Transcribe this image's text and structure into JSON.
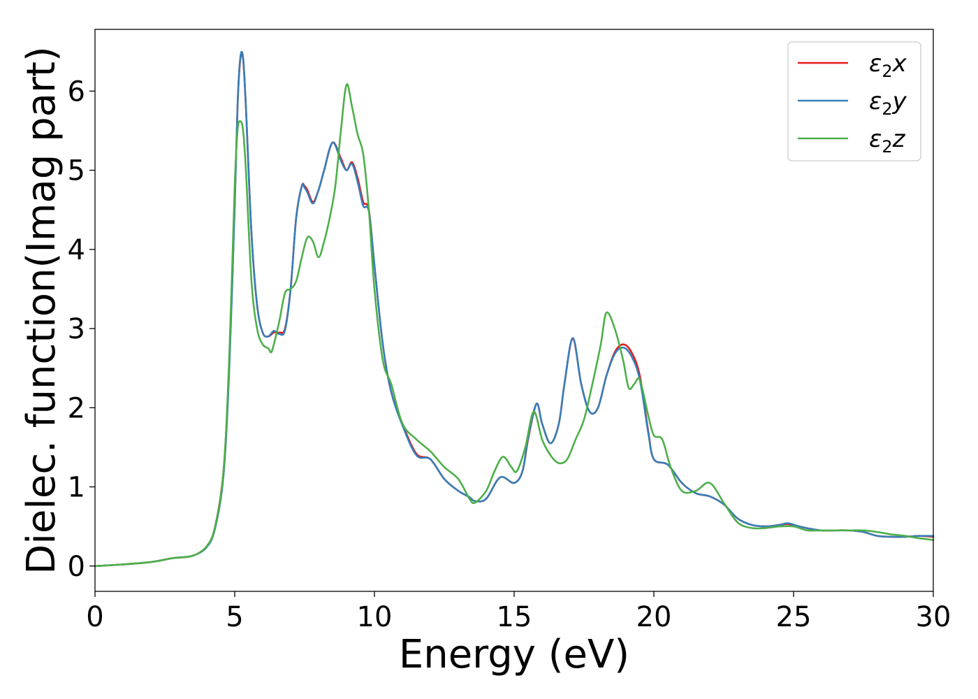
{
  "chart_data": {
    "type": "line",
    "xlabel": "Energy (eV)",
    "ylabel": "Dielec. function(Imag part)",
    "xlim": [
      0,
      30
    ],
    "ylim": [
      -0.32,
      6.78
    ],
    "xticks": [
      0,
      5,
      10,
      15,
      20,
      25,
      30
    ],
    "yticks": [
      0,
      1,
      2,
      3,
      4,
      5,
      6
    ],
    "grid": false,
    "legend_position": "top-right",
    "series": [
      {
        "name": "ε₂x",
        "legend_base": "ε",
        "legend_sub": "2",
        "legend_var": "x",
        "color": "#e41a1c",
        "x": [
          0,
          1,
          2,
          2.8,
          3.5,
          4,
          4.3,
          4.6,
          4.8,
          5.0,
          5.1,
          5.2,
          5.3,
          5.4,
          5.6,
          5.8,
          6.0,
          6.2,
          6.4,
          6.6,
          6.8,
          7.0,
          7.2,
          7.4,
          7.5,
          7.6,
          7.8,
          8.0,
          8.2,
          8.5,
          8.8,
          9.0,
          9.2,
          9.4,
          9.6,
          9.8,
          10.0,
          10.3,
          10.6,
          11.0,
          11.5,
          12.0,
          12.5,
          13.0,
          13.4,
          13.6,
          14.0,
          14.5,
          15.0,
          15.3,
          15.5,
          15.8,
          16.0,
          16.3,
          16.6,
          16.8,
          17.1,
          17.4,
          17.7,
          18.0,
          18.3,
          18.6,
          18.9,
          19.2,
          19.5,
          19.8,
          20.0,
          20.5,
          21.0,
          21.5,
          22.0,
          22.5,
          23.0,
          23.5,
          24.0,
          24.5,
          24.8,
          25.2,
          25.6,
          26.0,
          26.5,
          27.0,
          27.5,
          28.0,
          28.5,
          29.0,
          29.5,
          30.0
        ],
        "y": [
          0,
          0.02,
          0.05,
          0.1,
          0.13,
          0.25,
          0.5,
          1.2,
          2.5,
          4.6,
          5.8,
          6.4,
          6.4,
          5.8,
          4.2,
          3.3,
          2.95,
          2.9,
          2.95,
          2.95,
          3.0,
          3.5,
          4.4,
          4.8,
          4.8,
          4.75,
          4.6,
          4.75,
          5.0,
          5.35,
          5.15,
          5.0,
          5.1,
          4.9,
          4.6,
          4.5,
          3.8,
          2.8,
          2.2,
          1.8,
          1.42,
          1.35,
          1.1,
          0.95,
          0.87,
          0.82,
          0.85,
          1.12,
          1.05,
          1.2,
          1.6,
          2.05,
          1.8,
          1.55,
          1.8,
          2.3,
          2.87,
          2.3,
          1.95,
          2.0,
          2.4,
          2.7,
          2.8,
          2.7,
          2.4,
          1.7,
          1.35,
          1.28,
          1.05,
          0.92,
          0.88,
          0.78,
          0.6,
          0.52,
          0.5,
          0.52,
          0.53,
          0.5,
          0.47,
          0.45,
          0.45,
          0.45,
          0.43,
          0.38,
          0.37,
          0.37,
          0.38,
          0.37
        ]
      },
      {
        "name": "ε₂y",
        "legend_base": "ε",
        "legend_sub": "2",
        "legend_var": "y",
        "color": "#377eb8",
        "x": [
          0,
          1,
          2,
          2.8,
          3.5,
          4,
          4.3,
          4.6,
          4.8,
          5.0,
          5.1,
          5.2,
          5.3,
          5.4,
          5.6,
          5.8,
          6.0,
          6.2,
          6.4,
          6.6,
          6.8,
          7.0,
          7.2,
          7.4,
          7.5,
          7.6,
          7.8,
          8.0,
          8.2,
          8.5,
          8.8,
          9.0,
          9.2,
          9.4,
          9.6,
          9.8,
          10.0,
          10.3,
          10.6,
          11.0,
          11.5,
          12.0,
          12.5,
          13.0,
          13.4,
          13.6,
          14.0,
          14.5,
          15.0,
          15.3,
          15.5,
          15.8,
          16.0,
          16.3,
          16.6,
          16.8,
          17.1,
          17.4,
          17.7,
          18.0,
          18.3,
          18.6,
          18.9,
          19.2,
          19.5,
          19.8,
          20.0,
          20.5,
          21.0,
          21.5,
          22.0,
          22.5,
          23.0,
          23.5,
          24.0,
          24.5,
          24.8,
          25.2,
          25.6,
          26.0,
          26.5,
          27.0,
          27.5,
          28.0,
          28.5,
          29.0,
          29.5,
          30.0
        ],
        "y": [
          0,
          0.02,
          0.05,
          0.1,
          0.13,
          0.24,
          0.48,
          1.15,
          2.45,
          4.55,
          5.8,
          6.42,
          6.42,
          5.8,
          4.2,
          3.3,
          2.95,
          2.9,
          2.97,
          2.93,
          2.98,
          3.5,
          4.4,
          4.8,
          4.78,
          4.72,
          4.58,
          4.75,
          5.0,
          5.35,
          5.12,
          5.0,
          5.08,
          4.85,
          4.55,
          4.48,
          3.8,
          2.8,
          2.2,
          1.78,
          1.4,
          1.35,
          1.1,
          0.95,
          0.87,
          0.82,
          0.85,
          1.12,
          1.05,
          1.2,
          1.62,
          2.05,
          1.8,
          1.55,
          1.8,
          2.3,
          2.88,
          2.3,
          1.95,
          2.0,
          2.4,
          2.68,
          2.76,
          2.65,
          2.35,
          1.68,
          1.35,
          1.28,
          1.05,
          0.92,
          0.88,
          0.78,
          0.6,
          0.52,
          0.5,
          0.52,
          0.54,
          0.5,
          0.47,
          0.45,
          0.45,
          0.45,
          0.43,
          0.38,
          0.37,
          0.37,
          0.38,
          0.38
        ]
      },
      {
        "name": "ε₂z",
        "legend_base": "ε",
        "legend_sub": "2",
        "legend_var": "z",
        "color": "#4daf4a",
        "x": [
          0,
          1,
          2,
          2.8,
          3.5,
          4,
          4.3,
          4.6,
          4.8,
          5.0,
          5.1,
          5.2,
          5.3,
          5.4,
          5.6,
          5.8,
          6.0,
          6.2,
          6.3,
          6.4,
          6.6,
          6.8,
          7.0,
          7.2,
          7.4,
          7.6,
          7.8,
          8.0,
          8.2,
          8.4,
          8.6,
          8.8,
          9.0,
          9.2,
          9.4,
          9.6,
          9.8,
          10.0,
          10.3,
          10.6,
          11.0,
          11.5,
          12.0,
          12.5,
          13.0,
          13.4,
          13.6,
          14.0,
          14.3,
          14.6,
          14.9,
          15.1,
          15.4,
          15.7,
          16.0,
          16.3,
          16.6,
          16.9,
          17.2,
          17.5,
          17.8,
          18.1,
          18.3,
          18.6,
          18.9,
          19.1,
          19.3,
          19.5,
          19.8,
          20.0,
          20.3,
          20.6,
          21.0,
          21.5,
          22.0,
          22.5,
          23.0,
          23.5,
          24.0,
          24.5,
          25.0,
          25.5,
          26.0,
          26.5,
          27.0,
          27.5,
          28.0,
          28.5,
          29.0,
          29.5,
          30.0
        ],
        "y": [
          0,
          0.02,
          0.05,
          0.1,
          0.13,
          0.25,
          0.5,
          1.2,
          2.6,
          4.8,
          5.5,
          5.62,
          5.5,
          5.0,
          3.6,
          3.0,
          2.8,
          2.75,
          2.7,
          2.8,
          3.1,
          3.45,
          3.5,
          3.6,
          3.9,
          4.15,
          4.1,
          3.9,
          4.1,
          4.4,
          4.8,
          5.5,
          6.08,
          5.8,
          5.45,
          5.2,
          4.5,
          3.5,
          2.6,
          2.3,
          1.8,
          1.6,
          1.45,
          1.25,
          1.1,
          0.85,
          0.8,
          0.95,
          1.2,
          1.38,
          1.25,
          1.2,
          1.5,
          1.95,
          1.6,
          1.4,
          1.3,
          1.35,
          1.6,
          1.85,
          2.3,
          2.8,
          3.2,
          3.0,
          2.6,
          2.25,
          2.3,
          2.35,
          1.9,
          1.65,
          1.6,
          1.25,
          0.95,
          0.95,
          1.05,
          0.8,
          0.55,
          0.48,
          0.48,
          0.5,
          0.5,
          0.45,
          0.45,
          0.45,
          0.45,
          0.45,
          0.43,
          0.4,
          0.38,
          0.35,
          0.33
        ]
      }
    ]
  }
}
